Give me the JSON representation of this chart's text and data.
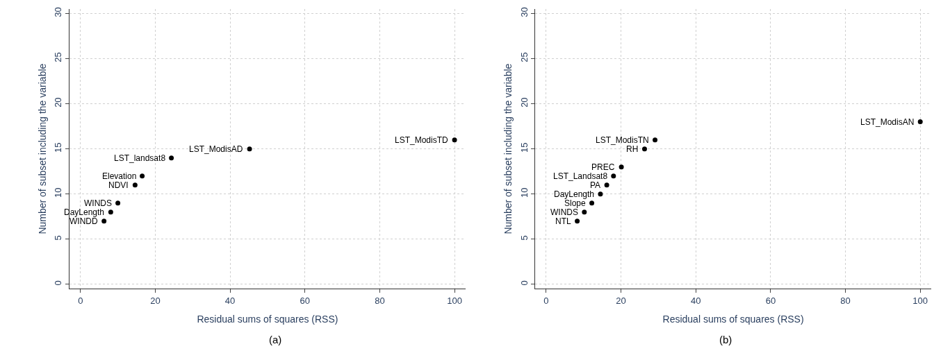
{
  "chart_data": [
    {
      "type": "scatter",
      "xlabel": "Residual sums of squares (RSS)",
      "ylabel": "Number of subset including the variable",
      "x": [
        6.3,
        8.1,
        10,
        14.6,
        16.5,
        24.3,
        45.2,
        100
      ],
      "values": [
        7,
        8,
        9,
        11,
        12,
        14,
        15,
        16
      ],
      "color": "#000000",
      "marker": "circle",
      "grid": true,
      "xlim": [
        -3,
        103
      ],
      "ylim": [
        -0.5,
        30.5
      ],
      "xticks": [
        0,
        20,
        40,
        60,
        80,
        100
      ],
      "yticks": [
        0,
        5,
        10,
        15,
        20,
        25,
        30
      ],
      "annotations": [
        {
          "text": "WINDD",
          "x": 6.3,
          "y": 7
        },
        {
          "text": "DayLength",
          "x": 8.1,
          "y": 8
        },
        {
          "text": "WINDS",
          "x": 10,
          "y": 9
        },
        {
          "text": "NDVI",
          "x": 14.6,
          "y": 11
        },
        {
          "text": "Elevation",
          "x": 16.5,
          "y": 12
        },
        {
          "text": "LST_landsat8",
          "x": 24.3,
          "y": 14
        },
        {
          "text": "LST_ModisAD",
          "x": 45.2,
          "y": 15
        },
        {
          "text": "LST_ModisTD",
          "x": 100,
          "y": 16
        },
        "(a)"
      ]
    },
    {
      "type": "scatter",
      "xlabel": "Residual sums of squares (RSS)",
      "ylabel": "Number of subset including the variable",
      "x": [
        8.3,
        10.2,
        12.2,
        14.5,
        16.2,
        18,
        20.1,
        26.3,
        29.1,
        100
      ],
      "values": [
        7,
        8,
        9,
        10,
        11,
        12,
        13,
        15,
        16,
        18
      ],
      "color": "#000000",
      "marker": "circle",
      "grid": true,
      "xlim": [
        -3,
        103
      ],
      "ylim": [
        -0.5,
        30.5
      ],
      "xticks": [
        0,
        20,
        40,
        60,
        80,
        100
      ],
      "yticks": [
        0,
        5,
        10,
        15,
        20,
        25,
        30
      ],
      "annotations": [
        {
          "text": "NTL",
          "x": 8.3,
          "y": 7
        },
        {
          "text": "WINDS",
          "x": 10.2,
          "y": 8
        },
        {
          "text": "Slope",
          "x": 12.2,
          "y": 9
        },
        {
          "text": "DayLength",
          "x": 14.5,
          "y": 10
        },
        {
          "text": "PA",
          "x": 16.2,
          "y": 11
        },
        {
          "text": "LST_Landsat8",
          "x": 18,
          "y": 12
        },
        {
          "text": "PREC",
          "x": 20.1,
          "y": 13
        },
        {
          "text": "RH",
          "x": 26.3,
          "y": 15
        },
        {
          "text": "LST_ModisTN",
          "x": 29.1,
          "y": 16
        },
        {
          "text": "LST_ModisAN",
          "x": 100,
          "y": 18
        },
        "(b)"
      ]
    }
  ]
}
